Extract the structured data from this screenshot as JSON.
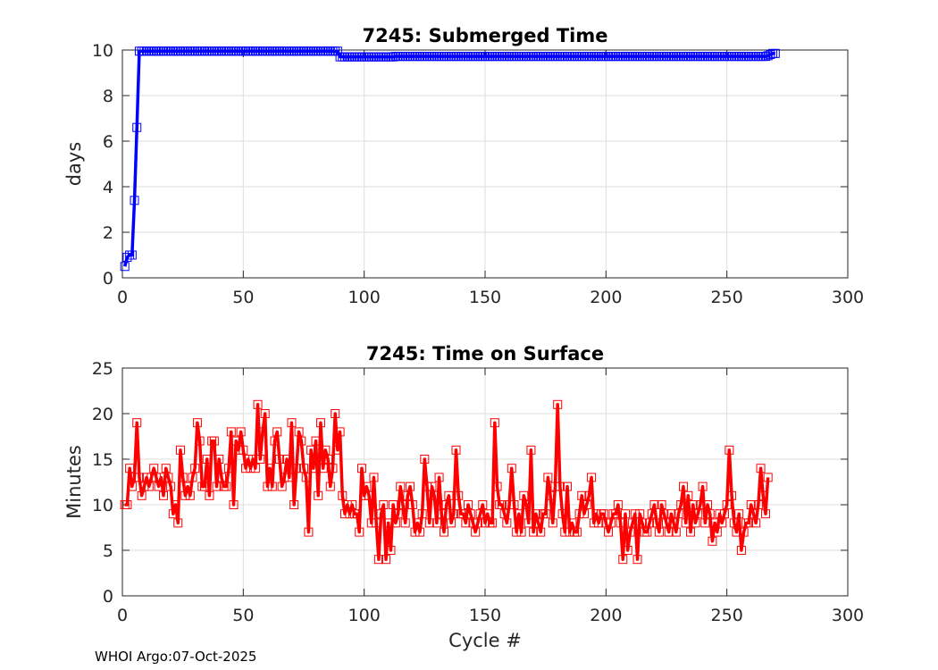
{
  "footer": "WHOI Argo:07-Oct-2025",
  "colors": {
    "top_series": "#0000ff",
    "bottom_series": "#ff0000",
    "grid": "#dddddd",
    "axes": "#262626"
  },
  "chart_data": [
    {
      "type": "line",
      "title": "7245: Submerged Time",
      "xlabel": "",
      "ylabel": "days",
      "xlim": [
        0,
        300
      ],
      "ylim": [
        0,
        10
      ],
      "xticks": [
        0,
        50,
        100,
        150,
        200,
        250,
        300
      ],
      "yticks": [
        0,
        2,
        4,
        6,
        8,
        10
      ],
      "grid": true,
      "marker": "square",
      "color": "#0000ff",
      "segments": [
        {
          "x_start": 1,
          "x_end": 1,
          "value": 0.5
        },
        {
          "x_start": 2,
          "x_end": 2,
          "value": 0.9
        },
        {
          "x_start": 3,
          "x_end": 4,
          "value": 1.0
        },
        {
          "x_start": 5,
          "x_end": 5,
          "value": 3.4
        },
        {
          "x_start": 6,
          "x_end": 6,
          "value": 6.6
        },
        {
          "x_start": 7,
          "x_end": 89,
          "value": 9.95
        },
        {
          "x_start": 90,
          "x_end": 112,
          "value": 9.7
        },
        {
          "x_start": 113,
          "x_end": 266,
          "value": 9.72
        },
        {
          "x_start": 267,
          "x_end": 267,
          "value": 9.75
        },
        {
          "x_start": 268,
          "x_end": 268,
          "value": 9.8
        },
        {
          "x_start": 269,
          "x_end": 270,
          "value": 9.85
        }
      ]
    },
    {
      "type": "line",
      "title": "7245: Time on Surface",
      "xlabel": "Cycle #",
      "ylabel": "Minutes",
      "xlim": [
        0,
        300
      ],
      "ylim": [
        0,
        25
      ],
      "xticks": [
        0,
        50,
        100,
        150,
        200,
        250,
        300
      ],
      "yticks": [
        0,
        5,
        10,
        15,
        20,
        25
      ],
      "grid": true,
      "marker": "square",
      "color": "#ff0000",
      "x_start": 1,
      "values": [
        10,
        10,
        14,
        12,
        13,
        19,
        13,
        11,
        12,
        13,
        12,
        13,
        14,
        13,
        12,
        13,
        11,
        14,
        13,
        12,
        9,
        10,
        8,
        16,
        13,
        11,
        12,
        11,
        13,
        14,
        19,
        17,
        12,
        12,
        15,
        11,
        17,
        17,
        12,
        15,
        13,
        12,
        12,
        14,
        18,
        10,
        17,
        16,
        18,
        16,
        14,
        15,
        14,
        15,
        14,
        21,
        15,
        18,
        20,
        12,
        14,
        12,
        17,
        18,
        15,
        12,
        13,
        15,
        13,
        19,
        10,
        14,
        18,
        17,
        14,
        13,
        7,
        16,
        14,
        17,
        11,
        19,
        14,
        16,
        15,
        12,
        14,
        20,
        16,
        18,
        11,
        9,
        10,
        9,
        10,
        9,
        9,
        7,
        14,
        11,
        12,
        11,
        8,
        13,
        8,
        4,
        9,
        10,
        4,
        8,
        5,
        10,
        8,
        9,
        12,
        10,
        8,
        11,
        12,
        10,
        7,
        8,
        7,
        9,
        15,
        12,
        8,
        12,
        11,
        8,
        13,
        9,
        7,
        10,
        11,
        8,
        9,
        16,
        11,
        9,
        9,
        8,
        10,
        9,
        8,
        7,
        8,
        9,
        10,
        8,
        9,
        8,
        8,
        19,
        12,
        10,
        10,
        9,
        8,
        10,
        14,
        10,
        7,
        9,
        7,
        11,
        10,
        8,
        16,
        7,
        9,
        8,
        7,
        9,
        9,
        13,
        11,
        8,
        12,
        21,
        12,
        9,
        7,
        12,
        7,
        8,
        7,
        7,
        9,
        11,
        9,
        10,
        11,
        13,
        8,
        9,
        8,
        9,
        9,
        8,
        7,
        8,
        9,
        9,
        10,
        8,
        4,
        9,
        5,
        7,
        8,
        9,
        4,
        9,
        8,
        7,
        7,
        8,
        9,
        10,
        8,
        7,
        10,
        9,
        8,
        7,
        9,
        8,
        7,
        9,
        10,
        12,
        8,
        11,
        7,
        10,
        8,
        9,
        10,
        12,
        8,
        10,
        9,
        6,
        8,
        7,
        9,
        8,
        9,
        10,
        16,
        11,
        8,
        7,
        9,
        5,
        7,
        8,
        8,
        10,
        9,
        8,
        10,
        14,
        11,
        9,
        13
      ]
    }
  ]
}
